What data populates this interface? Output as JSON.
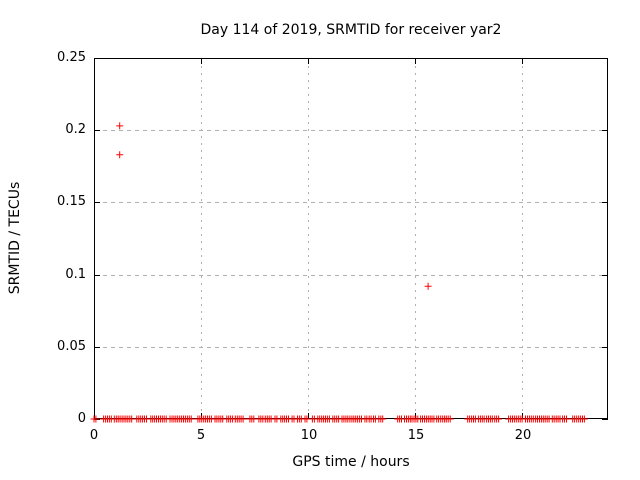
{
  "window": {
    "kind": "gnuplot-plot-output"
  },
  "chart": {
    "title": "Day 114 of 2019, SRMTID for receiver yar2",
    "xlabel": "GPS time / hours",
    "ylabel": "SRMTID / TECUs",
    "x_tick_labels": [
      "0",
      "5",
      "10",
      "15",
      "20"
    ],
    "y_tick_labels": [
      "0.25",
      "0.2",
      "0.15",
      "0.1",
      "0.05",
      "0"
    ],
    "colors": {
      "marker": "#ff0000",
      "grid": "#b0b0b0",
      "axis": "#000000",
      "text": "#000000",
      "background": "#ffffff"
    }
  },
  "chart_data": {
    "type": "scatter",
    "title": "Day 114 of 2019, SRMTID for receiver yar2",
    "xlabel": "GPS time / hours",
    "ylabel": "SRMTID / TECUs",
    "xlim": [
      0,
      24
    ],
    "ylim": [
      0,
      0.25
    ],
    "x_ticks": [
      0,
      5,
      10,
      15,
      20
    ],
    "y_ticks": [
      0,
      0.05,
      0.1,
      0.15,
      0.2,
      0.25
    ],
    "x_grid": [
      5,
      10,
      15,
      20
    ],
    "y_grid": [
      0.05,
      0.1,
      0.15,
      0.2
    ],
    "grid": true,
    "legend": "none",
    "marker": "plus",
    "marker_size_px": 7,
    "marker_color": "#ff0000",
    "outlier_points": [
      {
        "x": 1.2,
        "y": 0.203
      },
      {
        "x": 1.2,
        "y": 0.183
      },
      {
        "x": 15.6,
        "y": 0.092
      }
    ],
    "baseline_y": 0,
    "baseline_marker_step_hours": 0.09,
    "baseline_cluster_hours": [
      [
        0.0,
        0.1
      ],
      [
        0.45,
        0.85
      ],
      [
        0.95,
        1.8
      ],
      [
        2.0,
        2.5
      ],
      [
        2.65,
        3.45
      ],
      [
        3.55,
        4.6
      ],
      [
        4.85,
        5.55
      ],
      [
        5.65,
        5.85
      ],
      [
        5.92,
        6.06
      ],
      [
        6.2,
        6.5
      ],
      [
        6.6,
        7.0
      ],
      [
        7.28,
        7.5
      ],
      [
        7.7,
        7.9
      ],
      [
        8.0,
        8.3
      ],
      [
        8.45,
        8.62
      ],
      [
        8.72,
        9.15
      ],
      [
        9.25,
        9.42
      ],
      [
        9.5,
        9.75
      ],
      [
        9.85,
        9.95
      ],
      [
        10.2,
        10.32
      ],
      [
        10.45,
        11.0
      ],
      [
        11.15,
        11.5
      ],
      [
        11.58,
        11.85
      ],
      [
        11.95,
        12.55
      ],
      [
        12.65,
        12.8
      ],
      [
        12.85,
        12.97
      ],
      [
        13.05,
        13.2
      ],
      [
        13.3,
        13.5
      ],
      [
        14.18,
        14.42
      ],
      [
        14.5,
        14.8
      ],
      [
        14.85,
        14.95
      ],
      [
        15.03,
        15.12
      ],
      [
        15.25,
        15.7
      ],
      [
        15.78,
        15.9
      ],
      [
        16.0,
        16.1
      ],
      [
        16.19,
        16.38
      ],
      [
        16.45,
        16.65
      ],
      [
        17.45,
        17.87
      ],
      [
        17.95,
        18.25
      ],
      [
        18.33,
        18.61
      ],
      [
        18.71,
        18.89
      ],
      [
        19.36,
        20.06
      ],
      [
        20.15,
        20.53
      ],
      [
        20.62,
        21.3
      ],
      [
        21.4,
        21.79
      ],
      [
        21.88,
        22.12
      ],
      [
        22.35,
        22.44
      ],
      [
        22.54,
        22.63
      ],
      [
        22.72,
        22.96
      ]
    ]
  }
}
